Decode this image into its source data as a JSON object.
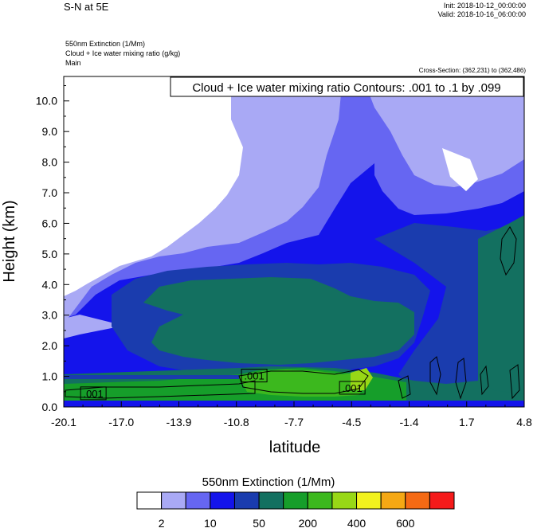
{
  "header": {
    "title": "S-N at 5E",
    "init": "Init: 2018-10-12_00:00:00",
    "valid": "Valid: 2018-10-16_06:00:00",
    "fields": [
      "550nm Extinction   (1/Mm)",
      "Cloud + Ice water mixing ratio   (g/kg)",
      "Main"
    ],
    "cross_section": "Cross-Section: (362,231) to (362,486)"
  },
  "colors": {
    "levels": [
      "#ffffff",
      "#a9a9f5",
      "#6666f2",
      "#1414eb",
      "#1a3cae",
      "#137060",
      "#169e2a",
      "#3cb81e",
      "#98d816",
      "#f2f21e",
      "#f5a814",
      "#f56a14",
      "#f51a1a"
    ]
  },
  "chart_data": {
    "type": "heatmap",
    "contour_label": "Cloud + Ice water mixing ratio Contours: .001 to .1 by .099",
    "xlabel": "latitude",
    "ylabel": "Height (km)",
    "xlim": [
      -20.1,
      4.8
    ],
    "ylim": [
      0.0,
      10.8
    ],
    "x_ticks": [
      "-20.1",
      "-17.0",
      "-13.9",
      "-10.8",
      "-7.7",
      "-4.5",
      "-1.4",
      "1.7",
      "4.8"
    ],
    "y_ticks": [
      "0.0",
      "1.0",
      "2.0",
      "3.0",
      "4.0",
      "5.0",
      "6.0",
      "7.0",
      "8.0",
      "9.0",
      "10.0"
    ],
    "contour_labels": [
      {
        "text": ".001",
        "x": -18.5,
        "y": 0.42
      },
      {
        "text": ".001",
        "x": -9.8,
        "y": 1.0
      },
      {
        "text": ".001",
        "x": -4.5,
        "y": 0.6
      }
    ],
    "colorbar": {
      "title": "550nm Extinction  (1/Mm)",
      "labels": [
        "2",
        "10",
        "50",
        "200",
        "400",
        "600"
      ]
    }
  }
}
